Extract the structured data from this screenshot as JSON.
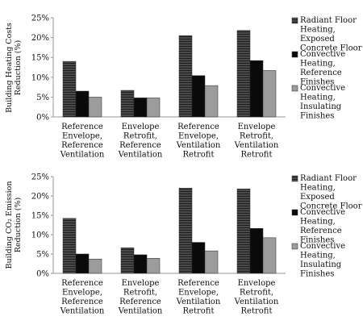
{
  "chart_data": [
    {
      "type": "bar",
      "ylabel": [
        "Building Heating Costs",
        "Reduction (%)"
      ],
      "xlabel": "",
      "ylim": [
        0,
        25
      ],
      "yticks": [
        "0%",
        "5%",
        "10%",
        "15%",
        "20%",
        "25%"
      ],
      "categories": [
        [
          "Reference",
          "Envelope,",
          "Reference",
          "Ventilation"
        ],
        [
          "Envelope",
          "Retrofit,",
          "Reference",
          "Ventilation"
        ],
        [
          "Reference",
          "Envelope,",
          "Ventilation",
          "Retrofit"
        ],
        [
          "Envelope",
          "Retrofit,",
          "Ventilation",
          "Retrofit"
        ]
      ],
      "series": [
        {
          "name": [
            "Radiant Floor",
            "Heating,",
            "Exposed",
            "Concrete Floor"
          ],
          "values": [
            14.0,
            6.7,
            20.5,
            21.8
          ]
        },
        {
          "name": [
            "Convective",
            "Heating,",
            "Reference",
            "Finishes"
          ],
          "values": [
            6.5,
            4.8,
            10.4,
            14.2
          ]
        },
        {
          "name": [
            "Convective",
            "Heating,",
            "Insulating",
            "Finishes"
          ],
          "values": [
            5.0,
            4.8,
            7.9,
            11.7
          ]
        }
      ],
      "grid": false,
      "legend": "right"
    },
    {
      "type": "bar",
      "ylabel": [
        "Building CO₂ Emission",
        "Reduction (%)"
      ],
      "xlabel": "",
      "ylim": [
        0,
        25
      ],
      "yticks": [
        "0%",
        "5%",
        "10%",
        "15%",
        "20%",
        "25%"
      ],
      "categories": [
        [
          "Reference",
          "Envelope,",
          "Reference",
          "Ventilation"
        ],
        [
          "Envelope",
          "Retrofit,",
          "Reference",
          "Ventilation"
        ],
        [
          "Reference",
          "Envelope,",
          "Ventilation",
          "Retrofit"
        ],
        [
          "Envelope",
          "Retrofit,",
          "Ventilation",
          "Retrofit"
        ]
      ],
      "series": [
        {
          "name": [
            "Radiant Floor",
            "Heating,",
            "Exposed",
            "Concrete Floor"
          ],
          "values": [
            14.2,
            6.6,
            22.0,
            21.8
          ]
        },
        {
          "name": [
            "Convective",
            "Heating,",
            "Reference",
            "Finishes"
          ],
          "values": [
            5.0,
            4.8,
            8.0,
            11.6
          ]
        },
        {
          "name": [
            "Convective",
            "Heating,",
            "Insulating",
            "Finishes"
          ],
          "values": [
            3.7,
            3.9,
            5.8,
            9.2
          ]
        }
      ],
      "grid": false,
      "legend": "right"
    }
  ],
  "colors": {
    "series": [
      "#3a3a3a",
      "#0a0a0a",
      "#9c9c9c"
    ],
    "axis": "#9a9a9a",
    "text": "#111111"
  }
}
